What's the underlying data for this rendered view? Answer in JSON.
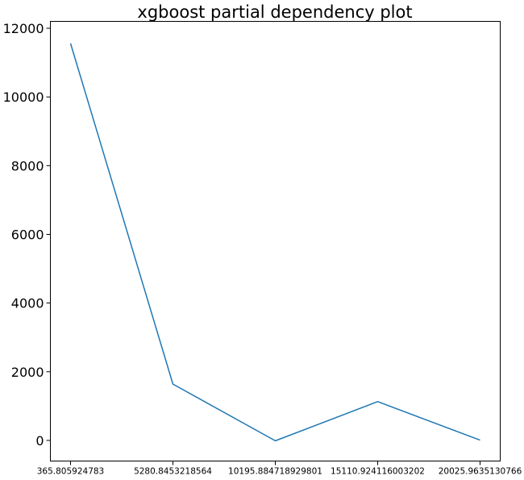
{
  "chart_data": {
    "type": "line",
    "title": "xgboost partial dependency plot",
    "xlabel": "",
    "ylabel": "",
    "x_ticks": [
      "365.805924783",
      "5280.8453218564",
      "10195.884718929801",
      "15110.924116003202",
      "20025.9635130766"
    ],
    "y_ticks": [
      0,
      2000,
      4000,
      6000,
      8000,
      10000,
      12000
    ],
    "ylim": [
      -600,
      12200
    ],
    "grid": false,
    "legend": "none",
    "series": [
      {
        "color": "#1f77b4",
        "x": [
          365.805924783,
          5280.8453218564,
          10195.884718929801,
          15110.924116003202,
          20025.9635130766
        ],
        "y": [
          11560,
          1640,
          -10,
          1130,
          10
        ]
      }
    ]
  }
}
